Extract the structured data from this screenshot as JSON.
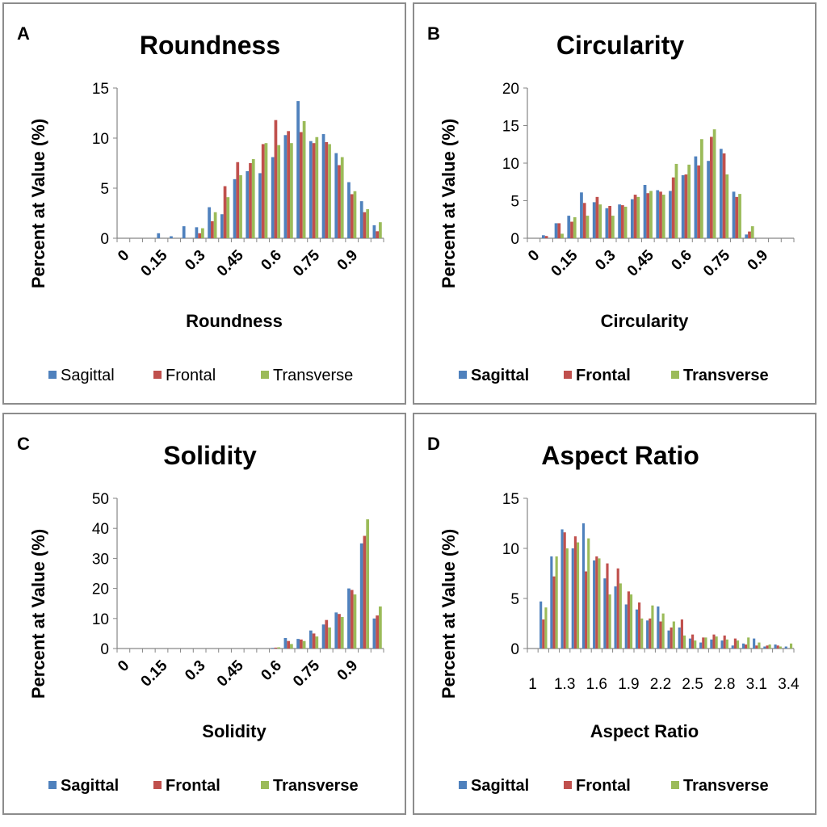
{
  "colors": {
    "Sagittal": "#4f81bd",
    "Frontal": "#c0504d",
    "Transverse": "#9bbb59"
  },
  "chart_data": [
    {
      "panel_label": "A",
      "type": "bar",
      "title": "Roundness",
      "xlabel": "Roundness",
      "ylabel": "Percent at Value (%)",
      "ylim": [
        0,
        15
      ],
      "yticks": [
        0,
        5,
        10,
        15
      ],
      "xtick_labels": [
        "0",
        "0.15",
        "0.3",
        "0.45",
        "0.6",
        "0.75",
        "0.9"
      ],
      "xtick_every": 3,
      "grid": false,
      "legend_position": "bottom",
      "categories": [
        "0",
        "0.05",
        "0.1",
        "0.15",
        "0.2",
        "0.25",
        "0.3",
        "0.35",
        "0.4",
        "0.45",
        "0.5",
        "0.55",
        "0.6",
        "0.65",
        "0.7",
        "0.75",
        "0.8",
        "0.85",
        "0.9",
        "0.95",
        "1"
      ],
      "series": [
        {
          "name": "Sagittal",
          "values": [
            0,
            0,
            0,
            0.5,
            0.2,
            1.2,
            1.1,
            3.1,
            2.4,
            5.9,
            6.7,
            6.5,
            8.1,
            10.3,
            13.7,
            9.7,
            10.4,
            8.5,
            5.6,
            3.7,
            1.3
          ]
        },
        {
          "name": "Frontal",
          "values": [
            0,
            0,
            0,
            0,
            0,
            0,
            0.5,
            1.7,
            5.2,
            7.6,
            7.5,
            9.4,
            11.8,
            10.7,
            10.6,
            9.5,
            9.6,
            7.3,
            4.4,
            2.6,
            0.7
          ]
        },
        {
          "name": "Transverse",
          "values": [
            0,
            0,
            0,
            0,
            0,
            0,
            1.0,
            2.6,
            4.1,
            6.3,
            7.9,
            9.5,
            9.3,
            9.5,
            11.7,
            10.1,
            9.4,
            8.1,
            4.7,
            2.9,
            1.6
          ]
        }
      ]
    },
    {
      "panel_label": "B",
      "type": "bar",
      "title": "Circularity",
      "xlabel": "Circularity",
      "ylabel": "Percent at Value (%)",
      "ylim": [
        0,
        20
      ],
      "yticks": [
        0,
        5,
        10,
        15,
        20
      ],
      "xtick_labels": [
        "0",
        "0.15",
        "0.3",
        "0.45",
        "0.6",
        "0.75",
        "0.9"
      ],
      "xtick_every": 3,
      "grid": false,
      "legend_position": "bottom",
      "categories": [
        "0",
        "0.05",
        "0.1",
        "0.15",
        "0.2",
        "0.25",
        "0.3",
        "0.35",
        "0.4",
        "0.45",
        "0.5",
        "0.55",
        "0.6",
        "0.65",
        "0.7",
        "0.75",
        "0.8",
        "0.85",
        "0.9",
        "0.95",
        "1"
      ],
      "series": [
        {
          "name": "Sagittal",
          "values": [
            0,
            0.4,
            2.0,
            3.0,
            6.1,
            4.8,
            4.0,
            4.5,
            5.2,
            7.1,
            6.4,
            6.3,
            8.4,
            10.9,
            10.3,
            11.9,
            6.2,
            0.5,
            0,
            0,
            0
          ]
        },
        {
          "name": "Frontal",
          "values": [
            0,
            0.3,
            2.0,
            2.2,
            4.7,
            5.5,
            4.3,
            4.4,
            5.8,
            6.0,
            6.2,
            8.1,
            8.5,
            9.7,
            13.5,
            11.3,
            5.5,
            0.9,
            0,
            0,
            0
          ]
        },
        {
          "name": "Transverse",
          "values": [
            0,
            0,
            0.6,
            2.8,
            3.0,
            4.5,
            3.0,
            4.2,
            5.5,
            6.3,
            5.8,
            9.9,
            9.8,
            13.2,
            14.5,
            8.5,
            5.9,
            1.6,
            0,
            0,
            0
          ]
        }
      ]
    },
    {
      "panel_label": "C",
      "type": "bar",
      "title": "Solidity",
      "xlabel": "Solidity",
      "ylabel": "Percent at Value (%)",
      "ylim": [
        0,
        50
      ],
      "yticks": [
        0,
        10,
        20,
        30,
        40,
        50
      ],
      "xtick_labels": [
        "0",
        "0.15",
        "0.3",
        "0.45",
        "0.6",
        "0.75",
        "0.9"
      ],
      "xtick_every": 3,
      "grid": false,
      "legend_position": "bottom",
      "categories": [
        "0",
        "0.05",
        "0.1",
        "0.15",
        "0.2",
        "0.25",
        "0.3",
        "0.35",
        "0.4",
        "0.45",
        "0.5",
        "0.55",
        "0.6",
        "0.65",
        "0.7",
        "0.75",
        "0.8",
        "0.85",
        "0.9",
        "0.95",
        "1"
      ],
      "series": [
        {
          "name": "Sagittal",
          "values": [
            0,
            0,
            0,
            0,
            0,
            0,
            0,
            0,
            0,
            0,
            0,
            0,
            0.2,
            3.5,
            3.2,
            6.0,
            8.0,
            12.0,
            20.0,
            35.0,
            10.0
          ]
        },
        {
          "name": "Frontal",
          "values": [
            0,
            0,
            0,
            0,
            0,
            0,
            0,
            0,
            0,
            0,
            0,
            0,
            0.3,
            2.5,
            3.0,
            5.0,
            9.5,
            11.5,
            19.5,
            37.5,
            11.0
          ]
        },
        {
          "name": "Transverse",
          "values": [
            0,
            0,
            0,
            0,
            0,
            0,
            0,
            0,
            0,
            0,
            0,
            0,
            0.4,
            1.5,
            2.5,
            4.0,
            7.0,
            10.5,
            18.0,
            43.0,
            14.0
          ]
        }
      ]
    },
    {
      "panel_label": "D",
      "type": "bar",
      "title": "Aspect Ratio",
      "xlabel": "Aspect Ratio",
      "ylabel": "Percent at Value (%)",
      "ylim": [
        0,
        15
      ],
      "yticks": [
        0,
        5,
        10,
        15
      ],
      "xtick_labels": [
        "1",
        "1.3",
        "1.6",
        "1.9",
        "2.2",
        "2.5",
        "2.8",
        "3.1",
        "3.4"
      ],
      "xtick_every": 3,
      "grid": false,
      "legend_position": "bottom",
      "categories": [
        "1",
        "1.1",
        "1.2",
        "1.3",
        "1.4",
        "1.5",
        "1.6",
        "1.7",
        "1.8",
        "1.9",
        "2",
        "2.1",
        "2.2",
        "2.3",
        "2.4",
        "2.5",
        "2.6",
        "2.7",
        "2.8",
        "2.9",
        "3",
        "3.1",
        "3.2",
        "3.3",
        "3.4"
      ],
      "series": [
        {
          "name": "Sagittal",
          "values": [
            0,
            4.7,
            9.2,
            11.9,
            10.0,
            12.5,
            8.8,
            7.0,
            6.2,
            4.4,
            3.9,
            2.8,
            4.2,
            1.8,
            2.1,
            1.0,
            0.6,
            0.9,
            0.8,
            0.3,
            0.5,
            1.0,
            0.2,
            0.4,
            0.2
          ]
        },
        {
          "name": "Frontal",
          "values": [
            0,
            2.9,
            7.2,
            11.6,
            11.2,
            7.7,
            9.2,
            8.5,
            8.0,
            5.7,
            4.6,
            3.0,
            2.7,
            2.1,
            2.9,
            1.4,
            1.1,
            1.4,
            1.3,
            1.0,
            0.4,
            0.3,
            0.3,
            0.3,
            0
          ]
        },
        {
          "name": "Transverse",
          "values": [
            0,
            4.1,
            9.2,
            10.0,
            10.6,
            11.0,
            9.0,
            5.4,
            6.5,
            5.4,
            3.0,
            4.3,
            3.5,
            2.7,
            1.3,
            0.8,
            1.1,
            1.2,
            0.9,
            0.8,
            1.1,
            0.6,
            0.4,
            0.2,
            0.5
          ]
        }
      ]
    }
  ]
}
